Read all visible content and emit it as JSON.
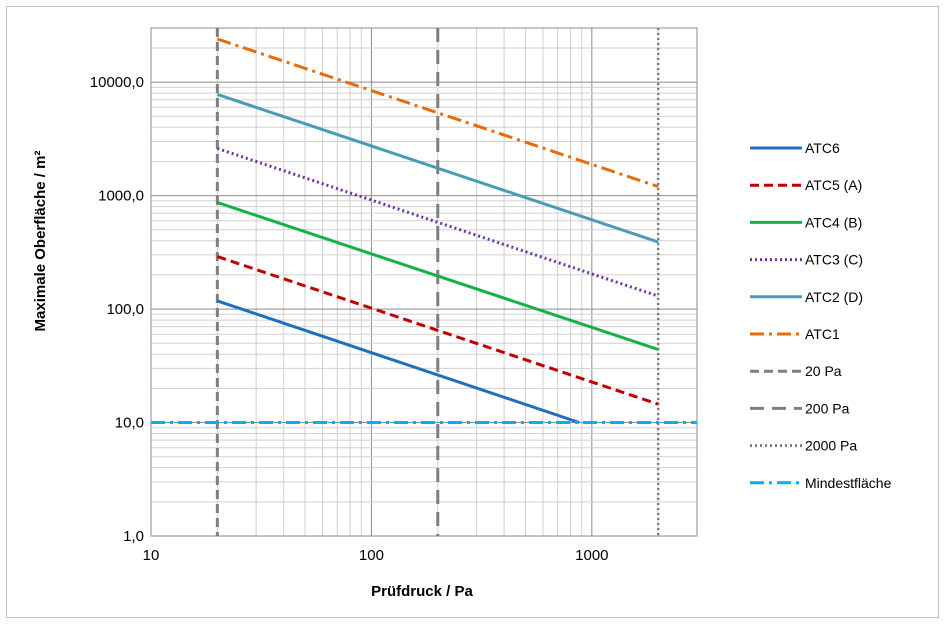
{
  "chart_data": {
    "type": "line",
    "title": "",
    "xlabel": "Prüfdruck / Pa",
    "ylabel": "Maximale Oberfläche / m²",
    "xscale": "log",
    "yscale": "log",
    "xlim": [
      10,
      3000
    ],
    "ylim": [
      1,
      30000
    ],
    "x_ticks": [
      {
        "value": 10,
        "label": "10"
      },
      {
        "value": 100,
        "label": "100"
      },
      {
        "value": 1000,
        "label": "1000"
      }
    ],
    "y_ticks": [
      {
        "value": 1,
        "label": "1,0"
      },
      {
        "value": 10,
        "label": "10,0"
      },
      {
        "value": 100,
        "label": "100,0"
      },
      {
        "value": 1000,
        "label": "1000,0"
      },
      {
        "value": 10000,
        "label": "10000,0"
      }
    ],
    "grid": "major and minor",
    "legend_position": "right",
    "series": [
      {
        "name": "ATC6",
        "color": "#1f6fbf",
        "dash": "solid",
        "points": [
          [
            20,
            118
          ],
          [
            875,
            10
          ]
        ]
      },
      {
        "name": "ATC5 (A)",
        "color": "#c00000",
        "dash": "dashed",
        "points": [
          [
            20,
            290
          ],
          [
            2000,
            14.5
          ]
        ]
      },
      {
        "name": "ATC4 (B)",
        "color": "#14b04a",
        "dash": "solid",
        "points": [
          [
            20,
            870
          ],
          [
            2000,
            44
          ]
        ]
      },
      {
        "name": "ATC3 (C)",
        "color": "#7030a0",
        "dash": "dotted",
        "points": [
          [
            20,
            2600
          ],
          [
            2000,
            130
          ]
        ]
      },
      {
        "name": "ATC2 (D)",
        "color": "#4a9bb5",
        "dash": "solid",
        "points": [
          [
            20,
            7800
          ],
          [
            2000,
            390
          ]
        ]
      },
      {
        "name": "ATC1",
        "color": "#e46c0a",
        "dash": "dashdot",
        "points": [
          [
            20,
            24000
          ],
          [
            2000,
            1200
          ]
        ]
      },
      {
        "name": "20 Pa",
        "color": "#7f7f7f",
        "dash": "dashed",
        "vertical_x": 20
      },
      {
        "name": "200 Pa",
        "color": "#7f7f7f",
        "dash": "longdash",
        "vertical_x": 200
      },
      {
        "name": "2000 Pa",
        "color": "#7f7f7f",
        "dash": "dotted",
        "vertical_x": 2000
      },
      {
        "name": "Mindestfläche",
        "color": "#00b0f0",
        "dash": "dashdot",
        "horizontal_y": 10
      }
    ]
  }
}
